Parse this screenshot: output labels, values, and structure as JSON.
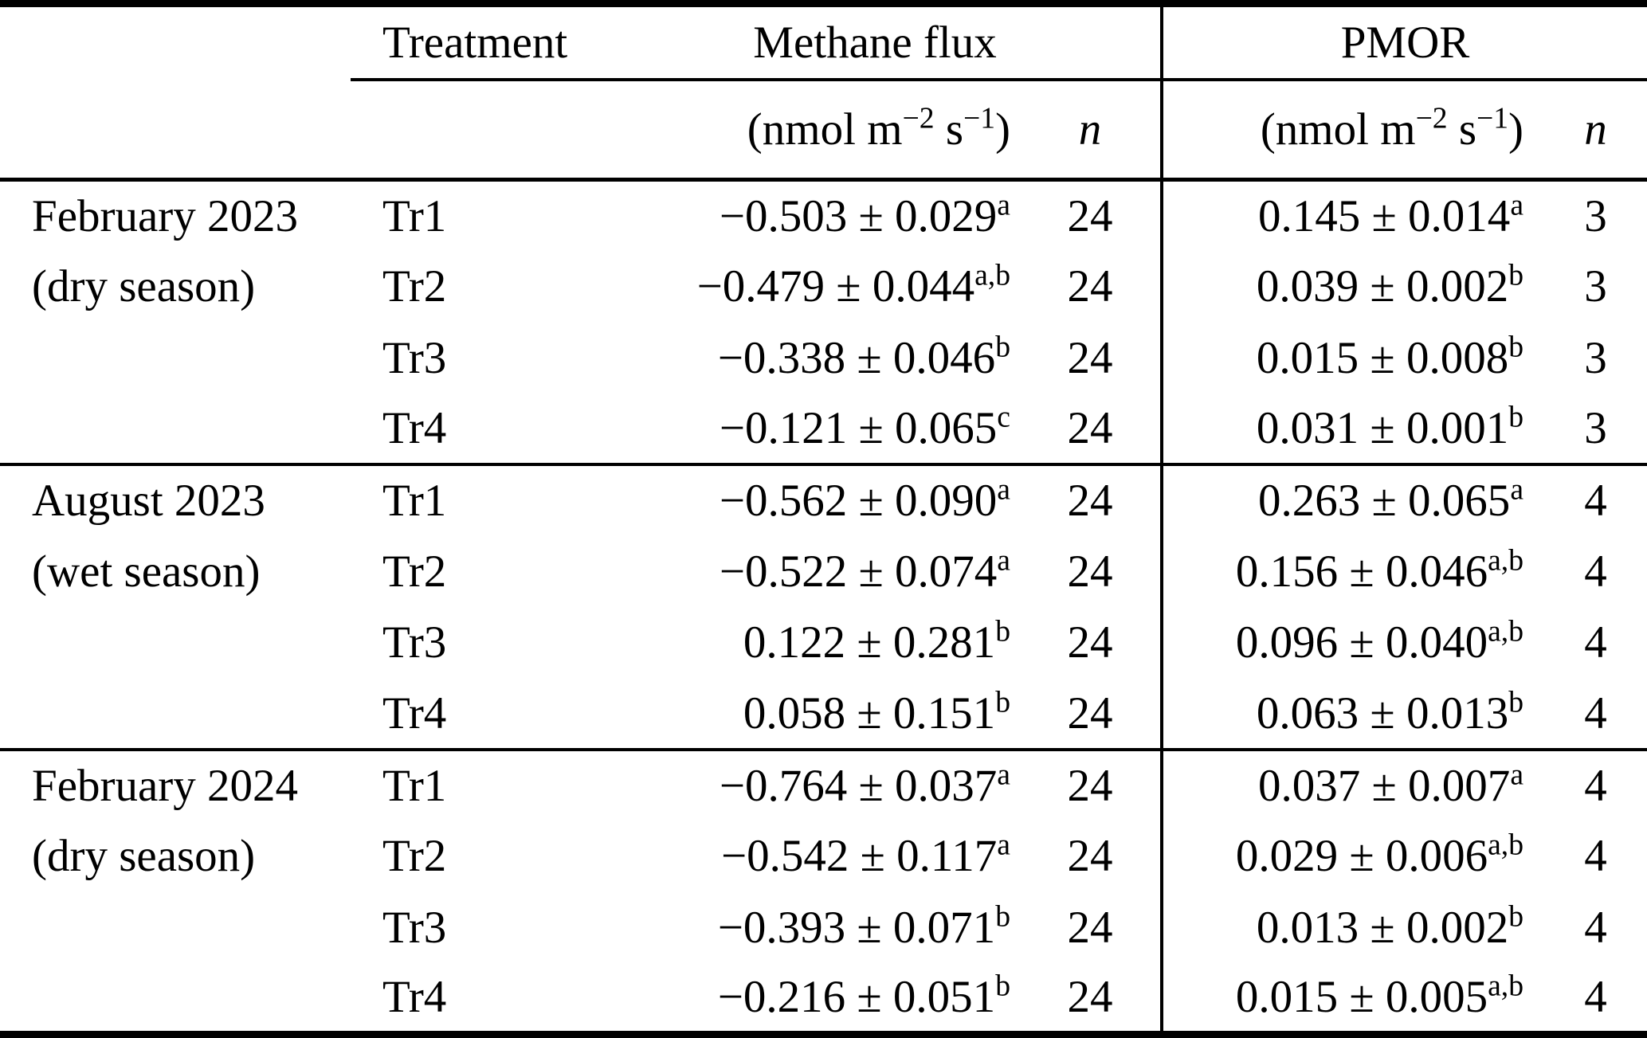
{
  "table": {
    "header": {
      "treatment_label": "Treatment",
      "methane_flux_label": "Methane flux",
      "pmor_label": "PMOR",
      "unit": {
        "p1": "(nmol m",
        "s1": "−2",
        "p2": " s",
        "s2": "−1",
        "p3": ")"
      },
      "n_label": "n"
    },
    "sections": [
      {
        "period_line1": "February 2023",
        "period_line2": "(dry season)",
        "rows": [
          {
            "treatment": "Tr1",
            "methane_value": "−0.503 ± 0.029",
            "methane_sup": "a",
            "methane_n": "24",
            "pmor_value": "0.145 ± 0.014",
            "pmor_sup": "a",
            "pmor_n": "3"
          },
          {
            "treatment": "Tr2",
            "methane_value": "−0.479 ± 0.044",
            "methane_sup": "a,b",
            "methane_n": "24",
            "pmor_value": "0.039 ± 0.002",
            "pmor_sup": "b",
            "pmor_n": "3"
          },
          {
            "treatment": "Tr3",
            "methane_value": "−0.338 ± 0.046",
            "methane_sup": "b",
            "methane_n": "24",
            "pmor_value": "0.015 ± 0.008",
            "pmor_sup": "b",
            "pmor_n": "3"
          },
          {
            "treatment": "Tr4",
            "methane_value": "−0.121 ± 0.065",
            "methane_sup": "c",
            "methane_n": "24",
            "pmor_value": "0.031 ± 0.001",
            "pmor_sup": "b",
            "pmor_n": "3"
          }
        ]
      },
      {
        "period_line1": "August 2023",
        "period_line2": "(wet season)",
        "rows": [
          {
            "treatment": "Tr1",
            "methane_value": "−0.562 ± 0.090",
            "methane_sup": "a",
            "methane_n": "24",
            "pmor_value": "0.263 ± 0.065",
            "pmor_sup": "a",
            "pmor_n": "4"
          },
          {
            "treatment": "Tr2",
            "methane_value": "−0.522 ± 0.074",
            "methane_sup": "a",
            "methane_n": "24",
            "pmor_value": "0.156 ± 0.046",
            "pmor_sup": "a,b",
            "pmor_n": "4"
          },
          {
            "treatment": "Tr3",
            "methane_value": "0.122 ± 0.281",
            "methane_sup": "b",
            "methane_n": "24",
            "pmor_value": "0.096 ± 0.040",
            "pmor_sup": "a,b",
            "pmor_n": "4"
          },
          {
            "treatment": "Tr4",
            "methane_value": "0.058 ± 0.151",
            "methane_sup": "b",
            "methane_n": "24",
            "pmor_value": "0.063 ± 0.013",
            "pmor_sup": "b",
            "pmor_n": "4"
          }
        ]
      },
      {
        "period_line1": "February 2024",
        "period_line2": "(dry season)",
        "rows": [
          {
            "treatment": "Tr1",
            "methane_value": "−0.764 ± 0.037",
            "methane_sup": "a",
            "methane_n": "24",
            "pmor_value": "0.037 ± 0.007",
            "pmor_sup": "a",
            "pmor_n": "4"
          },
          {
            "treatment": "Tr2",
            "methane_value": "−0.542 ± 0.117",
            "methane_sup": "a",
            "methane_n": "24",
            "pmor_value": "0.029 ± 0.006",
            "pmor_sup": "a,b",
            "pmor_n": "4"
          },
          {
            "treatment": "Tr3",
            "methane_value": "−0.393 ± 0.071",
            "methane_sup": "b",
            "methane_n": "24",
            "pmor_value": "0.013 ± 0.002",
            "pmor_sup": "b",
            "pmor_n": "4"
          },
          {
            "treatment": "Tr4",
            "methane_value": "−0.216 ± 0.051",
            "methane_sup": "b",
            "methane_n": "24",
            "pmor_value": "0.015 ± 0.005",
            "pmor_sup": "a,b",
            "pmor_n": "4"
          }
        ]
      }
    ]
  },
  "colors": {
    "text": "#000000",
    "background": "#ffffff",
    "rule": "#000000"
  }
}
